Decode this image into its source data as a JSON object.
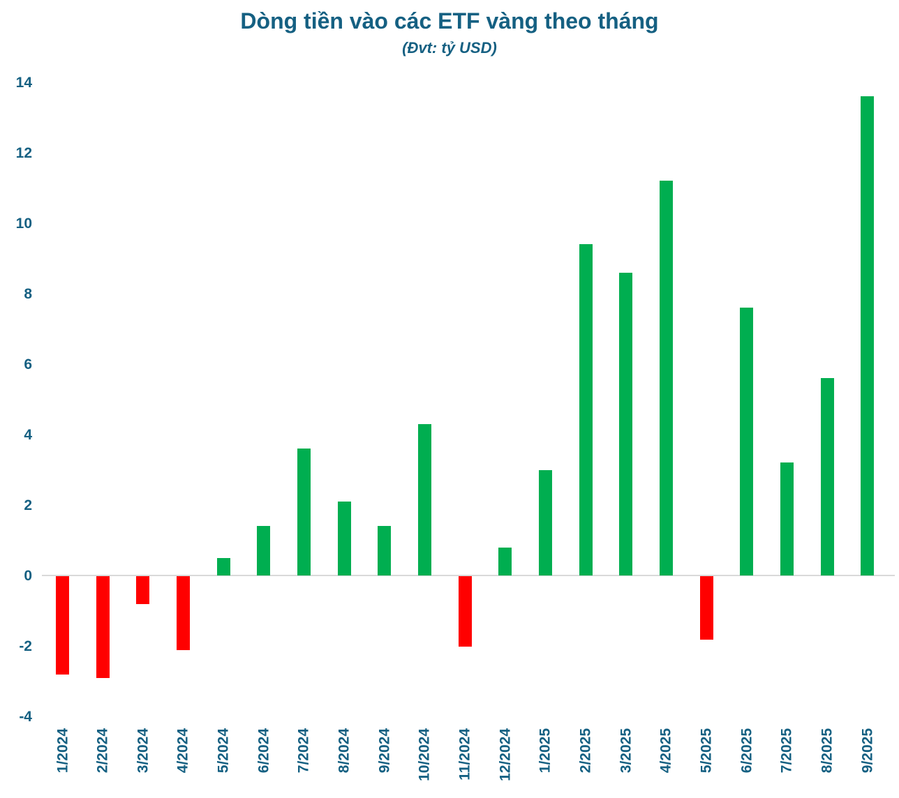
{
  "page": {
    "background": "#ffffff"
  },
  "chart_data": {
    "type": "bar",
    "title": "Dòng tiền vào các ETF vàng theo tháng",
    "subtitle": "(Đvt: tỷ USD)",
    "categories": [
      "1/2024",
      "2/2024",
      "3/2024",
      "4/2024",
      "5/2024",
      "6/2024",
      "7/2024",
      "8/2024",
      "9/2024",
      "10/2024",
      "11/2024",
      "12/2024",
      "1/2025",
      "2/2025",
      "3/2025",
      "4/2025",
      "5/2025",
      "6/2025",
      "7/2025",
      "8/2025",
      "9/2025"
    ],
    "values": [
      -2.8,
      -2.9,
      -0.8,
      -2.1,
      0.5,
      1.4,
      3.6,
      2.1,
      1.4,
      4.3,
      -2.0,
      0.8,
      3.0,
      9.4,
      8.6,
      11.2,
      -1.8,
      7.6,
      3.2,
      5.6,
      13.6
    ],
    "xlabel": "",
    "ylabel": "",
    "ylim": [
      -4,
      14
    ],
    "yticks": [
      14,
      12,
      10,
      8,
      6,
      4,
      2,
      0,
      -2,
      -4
    ],
    "grid": "zero-line-only",
    "legend": "none",
    "colors": {
      "positive": "#00AE50",
      "negative": "#FF0000",
      "text": "#156082",
      "gridline": "#D9D9D9"
    }
  }
}
